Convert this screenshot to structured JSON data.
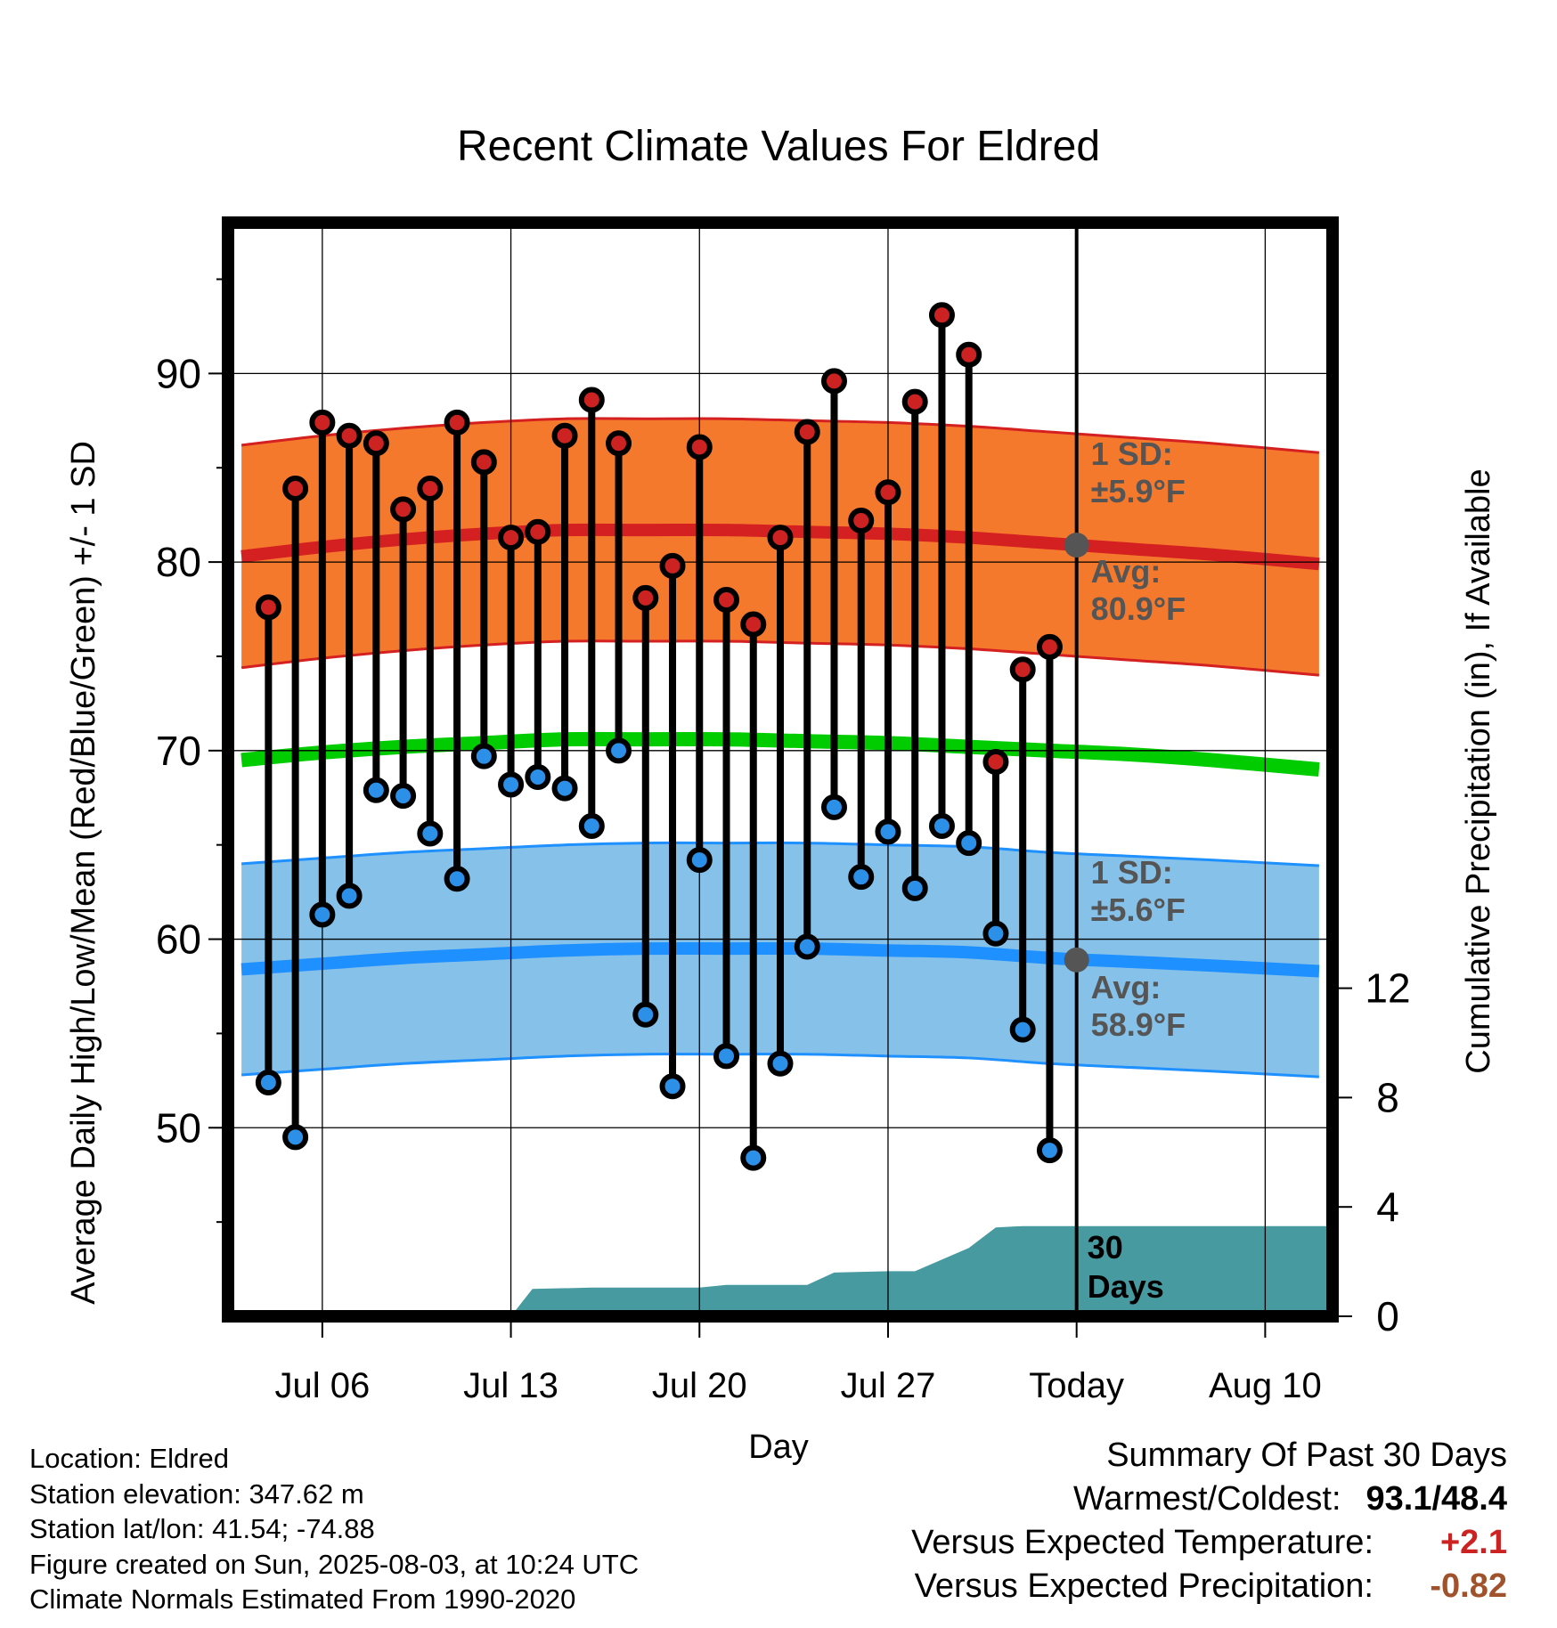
{
  "chart_data": {
    "type": "line",
    "title": "Recent Climate Values For Eldred",
    "xlabel": "Day",
    "ylabel": "Average Daily High/Low/Mean (Red/Blue/Green) +/- 1 SD",
    "ylabel_right": "Cumulative Precipitation (in), If Available",
    "xlim": [
      -3.5,
      37.5
    ],
    "ylim": [
      40,
      98
    ],
    "ylim_right": [
      0,
      40
    ],
    "x_ticks": [
      {
        "x": 0,
        "label": "Jul 06"
      },
      {
        "x": 7,
        "label": "Jul 13"
      },
      {
        "x": 14,
        "label": "Jul 20"
      },
      {
        "x": 21,
        "label": "Jul 27"
      },
      {
        "x": 28,
        "label": "Today"
      },
      {
        "x": 35,
        "label": "Aug 10"
      }
    ],
    "y_ticks": [
      50,
      60,
      70,
      80,
      90
    ],
    "y_ticks_right": [
      0,
      4,
      8,
      12
    ],
    "grid": true,
    "today_x": 28,
    "today_label_lines": [
      "30",
      "Days"
    ],
    "daily_highs": {
      "x": [
        -2,
        -1,
        0,
        1,
        2,
        3,
        4,
        5,
        6,
        7,
        8,
        9,
        10,
        11,
        12,
        13,
        14,
        15,
        16,
        17,
        18,
        19,
        20,
        21,
        22,
        23,
        24,
        25,
        26,
        27
      ],
      "values": [
        77.6,
        83.9,
        87.4,
        86.7,
        86.3,
        82.8,
        83.9,
        87.4,
        85.3,
        81.3,
        81.6,
        86.7,
        88.6,
        86.3,
        78.1,
        79.8,
        86.1,
        78.0,
        76.7,
        81.3,
        86.9,
        89.6,
        82.2,
        83.7,
        88.5,
        93.1,
        91.0,
        69.4,
        74.3,
        75.5
      ]
    },
    "daily_lows": {
      "x": [
        -2,
        -1,
        0,
        1,
        2,
        3,
        4,
        5,
        6,
        7,
        8,
        9,
        10,
        11,
        12,
        13,
        14,
        15,
        16,
        17,
        18,
        19,
        20,
        21,
        22,
        23,
        24,
        25,
        26,
        27
      ],
      "values": [
        52.4,
        49.5,
        61.3,
        62.3,
        67.9,
        67.6,
        65.6,
        63.2,
        69.7,
        68.2,
        68.6,
        68.0,
        66.0,
        70.0,
        56.0,
        52.2,
        64.2,
        53.8,
        48.4,
        53.4,
        59.6,
        67.0,
        63.3,
        65.7,
        62.7,
        66.0,
        65.1,
        60.3,
        55.2,
        48.8
      ]
    },
    "normal_high": {
      "x": [
        -3,
        0,
        3,
        6,
        9,
        12,
        15,
        18,
        21,
        24,
        27,
        30,
        33,
        37
      ],
      "avg": [
        80.3,
        80.8,
        81.2,
        81.5,
        81.7,
        81.7,
        81.7,
        81.6,
        81.5,
        81.3,
        81.0,
        80.7,
        80.4,
        79.9
      ],
      "sd": 5.9,
      "sd_label_lines": [
        "1 SD:",
        "±5.9°F"
      ],
      "avg_label_lines": [
        "Avg:",
        "80.9°F"
      ]
    },
    "normal_mean": {
      "x": [
        -3,
        0,
        3,
        6,
        9,
        12,
        15,
        18,
        21,
        24,
        27,
        30,
        33,
        37
      ],
      "values": [
        69.5,
        69.9,
        70.2,
        70.4,
        70.6,
        70.6,
        70.6,
        70.5,
        70.4,
        70.2,
        70.0,
        69.8,
        69.5,
        69.0
      ]
    },
    "normal_low": {
      "x": [
        -3,
        0,
        3,
        6,
        9,
        12,
        15,
        18,
        21,
        24,
        27,
        30,
        33,
        37
      ],
      "avg": [
        58.4,
        58.7,
        59.0,
        59.2,
        59.4,
        59.5,
        59.5,
        59.5,
        59.4,
        59.3,
        59.0,
        58.8,
        58.6,
        58.3
      ],
      "sd": 5.6,
      "sd_label_lines": [
        "1 SD:",
        "±5.6°F"
      ],
      "avg_label_lines": [
        "Avg:",
        "58.9°F"
      ]
    },
    "today_markers": {
      "high_avg": 80.9,
      "low_avg": 58.9
    },
    "cumulative_precip": {
      "x": [
        7,
        7.8,
        10,
        14,
        15,
        18,
        19,
        21,
        22,
        24,
        25,
        26,
        27,
        37.5
      ],
      "values": [
        0,
        1.0,
        1.05,
        1.05,
        1.15,
        1.15,
        1.6,
        1.65,
        1.65,
        2.5,
        3.25,
        3.3,
        3.3,
        3.3
      ]
    },
    "colors": {
      "high_point": "#cc2222",
      "low_point": "#2c8fe8",
      "high_band": "#f5792d",
      "high_line": "#d42020",
      "mean_line": "#00cc00",
      "low_band": "#85c1e9",
      "low_line": "#1e90ff",
      "precip": "#469aa0",
      "label_gray": "#555555",
      "marker_gray": "#555555"
    }
  },
  "info": {
    "location": "Location: Eldred",
    "elevation": "Station elevation: 347.62 m",
    "latlon": "Station lat/lon: 41.54; -74.88",
    "created": "Figure created on Sun, 2025-08-03, at 10:24 UTC",
    "normals": "Climate Normals Estimated From 1990-2020"
  },
  "summary": {
    "title": "Summary Of Past 30 Days",
    "warm_cold_label": "Warmest/Coldest:",
    "warm_cold_value": "93.1/48.4",
    "temp_label": "Versus Expected Temperature:",
    "temp_value": "+2.1",
    "temp_color": "#cc2222",
    "precip_label": "Versus Expected Precipitation:",
    "precip_value": "-0.82",
    "precip_color": "#a0522d"
  }
}
